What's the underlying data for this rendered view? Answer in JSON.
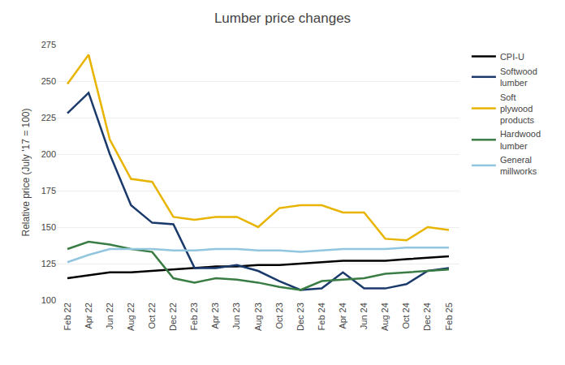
{
  "chart_data": {
    "type": "line",
    "title": "Lumber price changes",
    "y_label": "Relative price (July '17 = 100)",
    "categories": [
      "Feb 22",
      "Apr 22",
      "Jun 22",
      "Aug 22",
      "Oct 22",
      "Dec 22",
      "Feb 23",
      "Apr 23",
      "Jun 23",
      "Aug 23",
      "Oct 23",
      "Dec 23",
      "Feb 24",
      "Apr 24",
      "Jun 24",
      "Aug 24",
      "Oct 24",
      "Dec 24",
      "Feb 25"
    ],
    "series": [
      {
        "name": "CPI-U",
        "color": "#000000",
        "values": [
          115,
          117,
          119,
          119,
          120,
          121,
          122,
          123,
          123,
          124,
          124,
          125,
          126,
          127,
          127,
          127,
          128,
          129,
          130
        ]
      },
      {
        "name": "Softwood\nlumber",
        "color": "#1a3a6b",
        "values": [
          228,
          242,
          200,
          165,
          153,
          152,
          122,
          122,
          124,
          120,
          113,
          107,
          108,
          119,
          108,
          108,
          111,
          120,
          122
        ]
      },
      {
        "name": "Soft\nplywood\nproducts",
        "color": "#e8b400",
        "values": [
          248,
          268,
          210,
          183,
          181,
          157,
          155,
          157,
          157,
          150,
          163,
          165,
          165,
          160,
          160,
          142,
          141,
          150,
          148
        ]
      },
      {
        "name": "Hardwood\nlumber",
        "color": "#3a7d44",
        "values": [
          135,
          140,
          138,
          135,
          133,
          115,
          112,
          115,
          114,
          112,
          109,
          107,
          113,
          114,
          115,
          118,
          119,
          120,
          121
        ]
      },
      {
        "name": "General\nmillworks",
        "color": "#92c5de",
        "values": [
          126,
          131,
          135,
          135,
          135,
          134,
          134,
          135,
          135,
          134,
          134,
          133,
          134,
          135,
          135,
          135,
          136,
          136,
          136
        ]
      }
    ],
    "ylim": [
      100,
      275
    ],
    "yticks": [
      100,
      125,
      150,
      175,
      200,
      225,
      250,
      275
    ],
    "grid": true,
    "legend": "right"
  }
}
